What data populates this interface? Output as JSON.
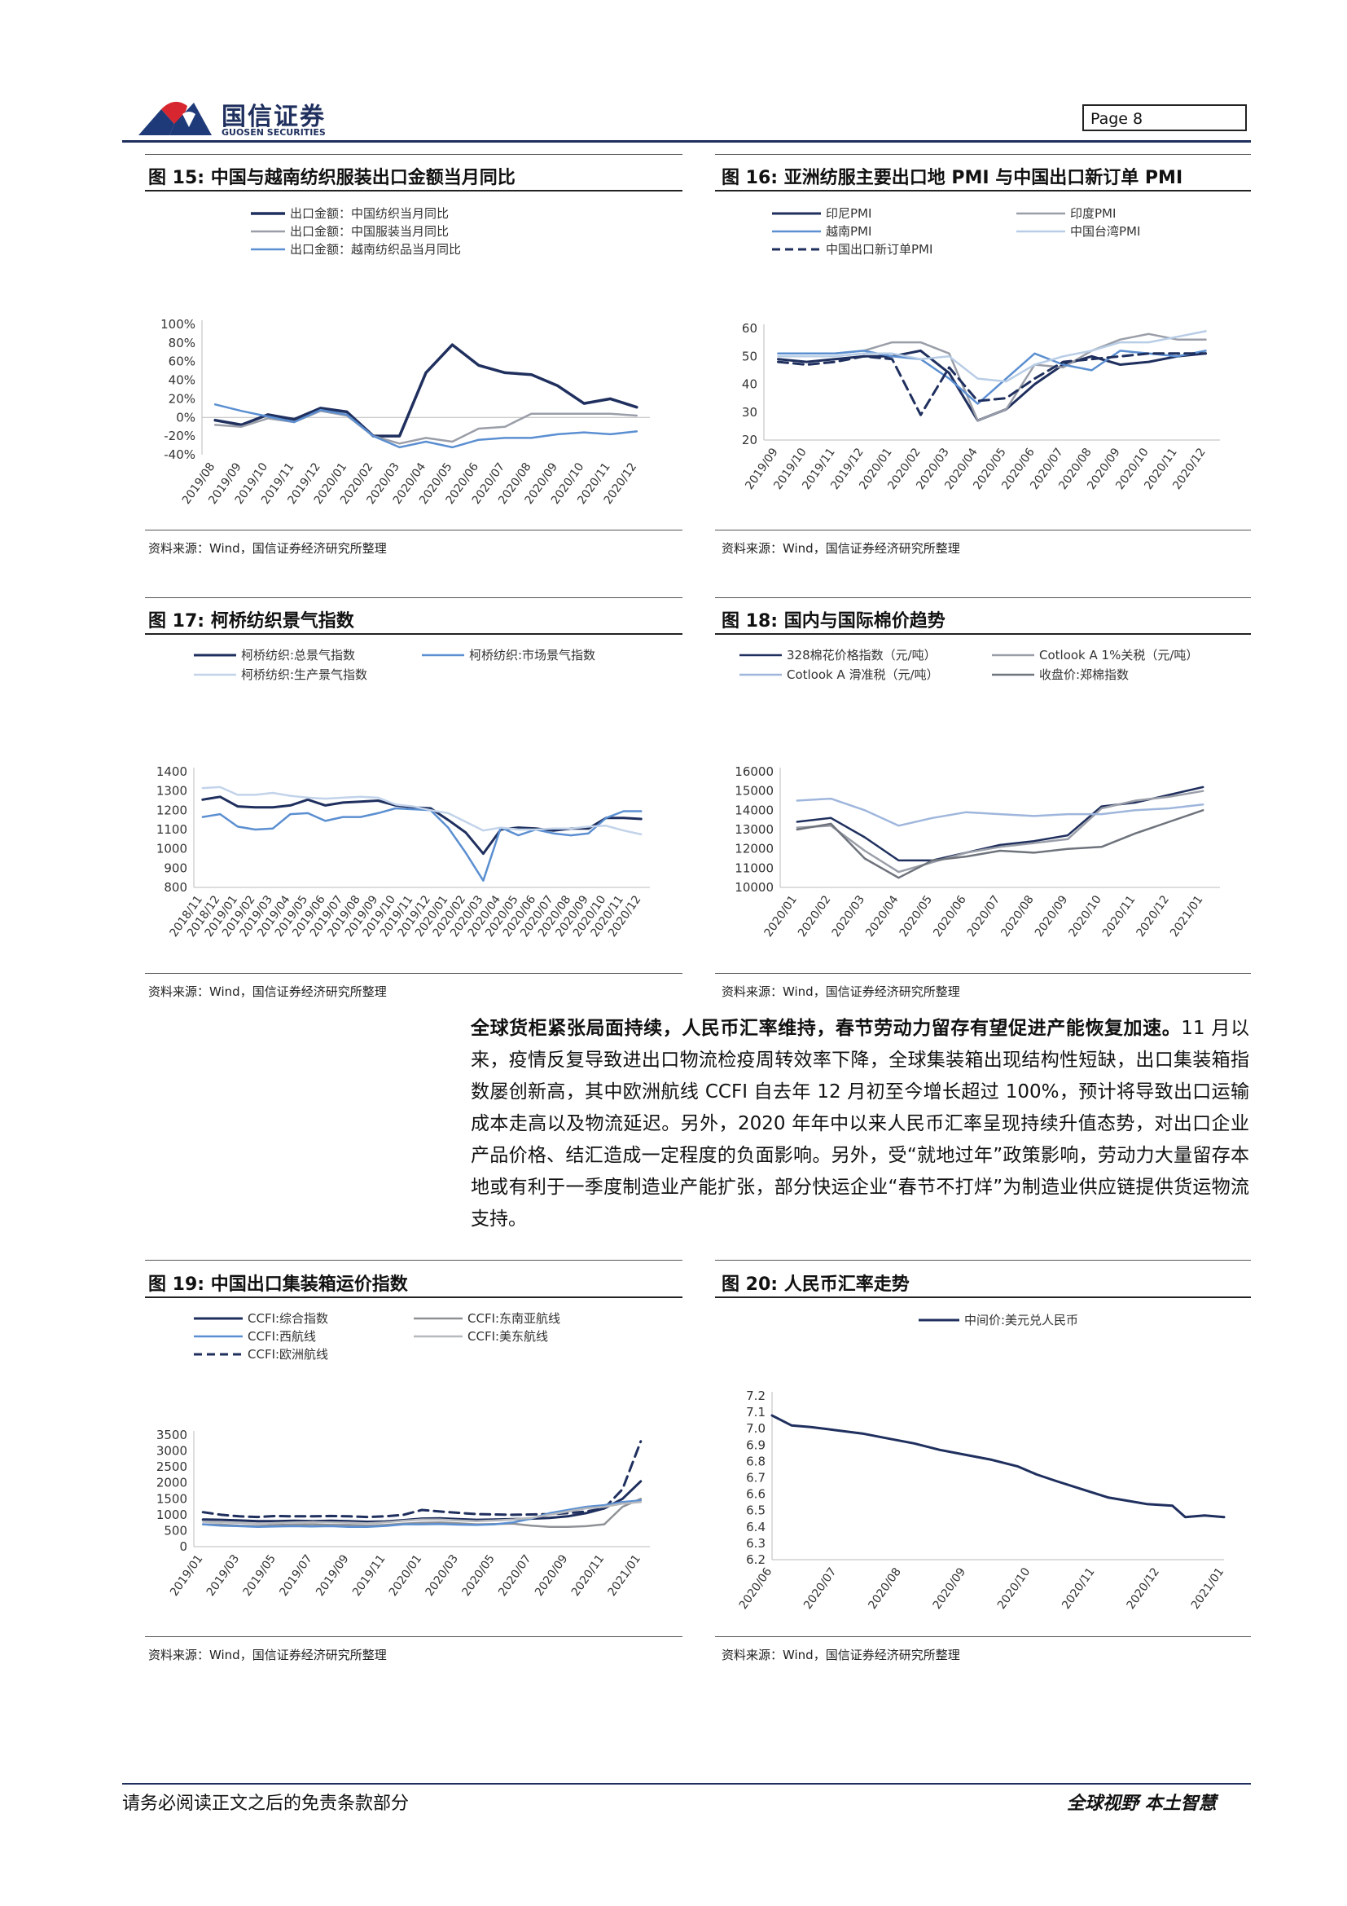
{
  "header": {
    "company_cn": "国信证券",
    "company_en": "GUOSEN SECURITIES",
    "page_label": "Page  8"
  },
  "figures": [
    {
      "label": "图 15:",
      "title": "中国与越南纺织服装出口金额当月同比",
      "source": "资料来源：Wind，国信证券经济研究所整理"
    },
    {
      "label": "图 16:",
      "title": "亚洲纺服主要出口地 PMI 与中国出口新订单 PMI",
      "source": "资料来源：Wind，国信证券经济研究所整理"
    },
    {
      "label": "图 17:",
      "title": "柯桥纺织景气指数",
      "source": "资料来源：Wind，国信证券经济研究所整理"
    },
    {
      "label": "图 18:",
      "title": "国内与国际棉价趋势",
      "source": "资料来源：Wind，国信证券经济研究所整理"
    },
    {
      "label": "图 19:",
      "title": "中国出口集装箱运价指数",
      "source": "资料来源：Wind，国信证券经济研究所整理"
    },
    {
      "label": "图 20:",
      "title": "人民币汇率走势",
      "source": "资料来源：Wind，国信证券经济研究所整理"
    }
  ],
  "body": {
    "bold_lead": "全球货柜紧张局面持续，人民币汇率维持，春节劳动力留存有望促进产能恢复加速。",
    "text": "11 月以来，疫情反复导致进出口物流检疫周转效率下降，全球集装箱出现结构性短缺，出口集装箱指数屡创新高，其中欧洲航线 CCFI 自去年 12 月初至今增长超过 100%，预计将导致出口运输成本走高以及物流延迟。另外，2020 年年中以来人民币汇率呈现持续升值态势，对出口企业产品价格、结汇造成一定程度的负面影响。另外，受“就地过年”政策影响，劳动力大量留存本地或有利于一季度制造业产能扩张，部分快运企业“春节不打烊”为制造业供应链提供货运物流支持。"
  },
  "footer": {
    "disclaimer": "请务必阅读正文之后的免责条款部分",
    "slogan": "全球视野   本土智慧"
  },
  "chart_data": [
    {
      "type": "line",
      "id": "fig15",
      "ylim": [
        -40,
        100
      ],
      "yticks": [
        "100%",
        "80%",
        "60%",
        "40%",
        "20%",
        "0%",
        "-20%",
        "-40%"
      ],
      "yticks_values": [
        100,
        80,
        60,
        40,
        20,
        0,
        -20,
        -40
      ],
      "categories": [
        "2019/08",
        "2019/09",
        "2019/10",
        "2019/11",
        "2019/12",
        "2020/01",
        "2020/02",
        "2020/03",
        "2020/04",
        "2020/05",
        "2020/06",
        "2020/07",
        "2020/08",
        "2020/09",
        "2020/10",
        "2020/11",
        "2020/12"
      ],
      "xtick_labels": [
        "2019/08",
        "2019/09",
        "2019/10",
        "2019/11",
        "2019/12",
        "2020/01",
        "2020/02",
        "2020/03",
        "2020/04",
        "2020/05",
        "2020/06",
        "2020/07",
        "2020/08",
        "2020/09",
        "2020/10",
        "2020/11",
        "2020/12"
      ],
      "series": [
        {
          "name": "出口金额：中国纺织当月同比",
          "color": "#1f2f5e",
          "width": 3.5,
          "values": [
            -3,
            -8,
            3,
            -2,
            10,
            6,
            -20,
            -20,
            48,
            78,
            56,
            48,
            46,
            34,
            15,
            20,
            11
          ]
        },
        {
          "name": "出口金额：中国服装当月同比",
          "color": "#9a9ea8",
          "width": 2.5,
          "values": [
            -8,
            -10,
            -1,
            -5,
            7,
            2,
            -20,
            -28,
            -22,
            -26,
            -12,
            -10,
            4,
            4,
            4,
            4,
            2
          ]
        },
        {
          "name": "出口金额：越南纺织品当月同比",
          "color": "#5b8fd1",
          "width": 2.5,
          "values": [
            14,
            7,
            1,
            -5,
            8,
            3,
            -20,
            -32,
            -26,
            -32,
            -24,
            -22,
            -22,
            -18,
            -16,
            -18,
            -15
          ]
        }
      ]
    },
    {
      "type": "line",
      "id": "fig16",
      "ylim": [
        20,
        60
      ],
      "yticks_values": [
        60,
        50,
        40,
        30,
        20
      ],
      "categories": [
        "2019/09",
        "2019/10",
        "2019/11",
        "2019/12",
        "2020/01",
        "2020/02",
        "2020/03",
        "2020/04",
        "2020/05",
        "2020/06",
        "2020/07",
        "2020/08",
        "2020/09",
        "2020/10",
        "2020/11",
        "2020/12"
      ],
      "xtick_labels": [
        "2019/09",
        "2019/10",
        "2019/11",
        "2019/12",
        "2020/01",
        "2020/02",
        "2020/03",
        "2020/04",
        "2020/05",
        "2020/06",
        "2020/07",
        "2020/08",
        "2020/09",
        "2020/10",
        "2020/11",
        "2020/12"
      ],
      "series": [
        {
          "name": "印尼PMI",
          "color": "#1f2f5e",
          "width": 3,
          "dash": false,
          "values": [
            49,
            48,
            49,
            50,
            50,
            52,
            44,
            27,
            31,
            40,
            47,
            50,
            47,
            48,
            50,
            51
          ]
        },
        {
          "name": "印度PMI",
          "color": "#9a9ea8",
          "width": 2.5,
          "dash": false,
          "values": [
            51,
            51,
            51,
            52,
            55,
            55,
            51,
            27,
            31,
            47,
            46,
            52,
            56,
            58,
            56,
            56
          ]
        },
        {
          "name": "越南PMI",
          "color": "#5b8fd1",
          "width": 2.5,
          "dash": false,
          "values": [
            51,
            51,
            51,
            52,
            50,
            49,
            42,
            33,
            42,
            51,
            47,
            45,
            52,
            51,
            50,
            52
          ]
        },
        {
          "name": "中国台湾PMI",
          "color": "#b8cde6",
          "width": 2.5,
          "dash": false,
          "values": [
            50,
            50,
            50,
            51,
            51,
            49,
            50,
            42,
            41,
            47,
            50,
            52,
            55,
            55,
            57,
            59
          ]
        },
        {
          "name": "中国出口新订单PMI",
          "color": "#1f2f5e",
          "width": 3,
          "dash": true,
          "values": [
            48,
            47,
            48,
            50,
            49,
            29,
            46,
            34,
            35,
            42,
            48,
            49,
            50,
            51,
            51,
            51
          ]
        }
      ]
    },
    {
      "type": "line",
      "id": "fig17",
      "ylim": [
        800,
        1400
      ],
      "yticks_values": [
        1400,
        1300,
        1200,
        1100,
        1000,
        900,
        800
      ],
      "categories": [
        "2018/11",
        "2018/12",
        "2019/01",
        "2019/02",
        "2019/03",
        "2019/04",
        "2019/05",
        "2019/06",
        "2019/07",
        "2019/08",
        "2019/09",
        "2019/10",
        "2019/11",
        "2019/12",
        "2020/01",
        "2020/02",
        "2020/03",
        "2020/04",
        "2020/05",
        "2020/06",
        "2020/07",
        "2020/08",
        "2020/09",
        "2020/10",
        "2020/11",
        "2020/12"
      ],
      "xtick_labels": [
        "2018/11",
        "2018/12",
        "2019/01",
        "2019/02",
        "2019/03",
        "2019/04",
        "2019/05",
        "2019/06",
        "2019/07",
        "2019/08",
        "2019/09",
        "2019/10",
        "2019/11",
        "2019/12",
        "2020/01",
        "2020/02",
        "2020/03",
        "2020/04",
        "2020/05",
        "2020/06",
        "2020/07",
        "2020/08",
        "2020/09",
        "2020/10",
        "2020/11",
        "2020/12"
      ],
      "series": [
        {
          "name": "柯桥纺织:总景气指数",
          "color": "#1f2f5e",
          "width": 3,
          "values": [
            1255,
            1270,
            1220,
            1215,
            1215,
            1225,
            1255,
            1225,
            1240,
            1245,
            1250,
            1225,
            1215,
            1210,
            1150,
            1085,
            975,
            1100,
            1110,
            1105,
            1095,
            1105,
            1105,
            1160,
            1160,
            1155
          ]
        },
        {
          "name": "柯桥纺织:市场景气指数",
          "color": "#5b8fd1",
          "width": 2.5,
          "values": [
            1165,
            1180,
            1115,
            1100,
            1105,
            1180,
            1185,
            1145,
            1165,
            1165,
            1185,
            1210,
            1205,
            1200,
            1110,
            980,
            835,
            1110,
            1070,
            1100,
            1080,
            1070,
            1080,
            1160,
            1195,
            1195
          ]
        },
        {
          "name": "柯桥纺织:生产景气指数",
          "color": "#c2d3ea",
          "width": 2.5,
          "values": [
            1315,
            1320,
            1280,
            1280,
            1290,
            1275,
            1265,
            1260,
            1265,
            1270,
            1265,
            1230,
            1220,
            1200,
            1185,
            1140,
            1095,
            1110,
            1100,
            1100,
            1105,
            1105,
            1115,
            1120,
            1095,
            1075
          ]
        }
      ]
    },
    {
      "type": "line",
      "id": "fig18",
      "ylim": [
        10000,
        16000
      ],
      "yticks_values": [
        16000,
        15000,
        14000,
        13000,
        12000,
        11000,
        10000
      ],
      "categories": [
        "2020/01",
        "2020/02",
        "2020/03",
        "2020/04",
        "2020/05",
        "2020/06",
        "2020/07",
        "2020/08",
        "2020/09",
        "2020/10",
        "2020/11",
        "2020/12",
        "2021/01"
      ],
      "xtick_labels": [
        "2020/01",
        "2020/02",
        "2020/03",
        "2020/04",
        "2020/05",
        "2020/06",
        "2020/07",
        "2020/08",
        "2020/09",
        "2020/10",
        "2020/11",
        "2020/12",
        "2021/01"
      ],
      "series": [
        {
          "name": "328棉花价格指数（元/吨）",
          "color": "#1f2f5e",
          "width": 2.5,
          "values": [
            13400,
            13600,
            12600,
            11400,
            11400,
            11800,
            12200,
            12400,
            12700,
            14200,
            14400,
            14800,
            15200
          ]
        },
        {
          "name": "Cotlook A 1%关税（元/吨）",
          "color": "#9a9ea8",
          "width": 2.5,
          "values": [
            13100,
            13200,
            11900,
            10800,
            11300,
            11800,
            12100,
            12300,
            12500,
            14100,
            14500,
            14700,
            15000
          ]
        },
        {
          "name": "Cotlook A 滑准税（元/吨）",
          "color": "#9fb6dc",
          "width": 2.5,
          "values": [
            14500,
            14600,
            14000,
            13200,
            13600,
            13900,
            13800,
            13700,
            13800,
            13800,
            14000,
            14100,
            14300
          ]
        },
        {
          "name": "收盘价:郑棉指数",
          "color": "#6e737c",
          "width": 2.5,
          "values": [
            13000,
            13300,
            11500,
            10500,
            11400,
            11600,
            11900,
            11800,
            12000,
            12100,
            12800,
            13400,
            14000
          ]
        }
      ]
    },
    {
      "type": "line",
      "id": "fig19",
      "ylim": [
        0,
        3500
      ],
      "yticks_values": [
        3500,
        3000,
        2500,
        2000,
        1500,
        1000,
        500,
        0
      ],
      "categories": [
        "2019/01",
        "2019/02",
        "2019/03",
        "2019/04",
        "2019/05",
        "2019/06",
        "2019/07",
        "2019/08",
        "2019/09",
        "2019/10",
        "2019/11",
        "2019/12",
        "2020/01",
        "2020/02",
        "2020/03",
        "2020/04",
        "2020/05",
        "2020/06",
        "2020/07",
        "2020/08",
        "2020/09",
        "2020/10",
        "2020/11",
        "2020/12",
        "2021/01"
      ],
      "xtick_labels": [
        "2019/01",
        "2019/03",
        "2019/05",
        "2019/07",
        "2019/09",
        "2019/11",
        "2020/01",
        "2020/03",
        "2020/05",
        "2020/07",
        "2020/09",
        "2020/11",
        "2021/01"
      ],
      "series": [
        {
          "name": "CCFI:综合指数",
          "color": "#1f2f5e",
          "width": 3,
          "dash": false,
          "values": [
            850,
            840,
            820,
            800,
            800,
            810,
            800,
            810,
            800,
            780,
            790,
            830,
            880,
            890,
            860,
            840,
            850,
            860,
            880,
            900,
            950,
            1050,
            1200,
            1500,
            2050
          ]
        },
        {
          "name": "CCFI:欧洲航线",
          "color": "#1f2f5e",
          "width": 3,
          "dash": true,
          "values": [
            1080,
            1000,
            950,
            930,
            960,
            950,
            950,
            960,
            950,
            930,
            950,
            1000,
            1150,
            1100,
            1060,
            1020,
            1010,
            1000,
            1010,
            1020,
            1050,
            1100,
            1200,
            1800,
            3300
          ]
        },
        {
          "name": "CCFI:东南亚航线",
          "color": "#8e9196",
          "width": 2.5,
          "dash": false,
          "values": [
            700,
            690,
            660,
            650,
            680,
            690,
            700,
            680,
            680,
            660,
            680,
            720,
            750,
            760,
            730,
            700,
            710,
            720,
            660,
            620,
            620,
            640,
            700,
            1250,
            1500
          ]
        },
        {
          "name": "CCFI:西航线",
          "color": "#5b8fd1",
          "width": 2.5,
          "dash": false,
          "values": [
            700,
            660,
            640,
            620,
            630,
            640,
            630,
            640,
            620,
            620,
            650,
            700,
            700,
            710,
            690,
            680,
            700,
            760,
            880,
            1050,
            1150,
            1250,
            1300,
            1400,
            1450
          ]
        },
        {
          "name": "CCFI:美东航线",
          "color": "#b5b8bd",
          "width": 2.5,
          "dash": false,
          "values": [
            780,
            760,
            740,
            720,
            740,
            760,
            770,
            760,
            750,
            730,
            760,
            810,
            850,
            850,
            820,
            800,
            820,
            850,
            900,
            1000,
            1100,
            1200,
            1250,
            1350,
            1400
          ]
        }
      ]
    },
    {
      "type": "line",
      "id": "fig20",
      "ylim": [
        6.2,
        7.2
      ],
      "yticks_values": [
        7.2,
        7.1,
        7.0,
        6.9,
        6.8,
        6.7,
        6.6,
        6.5,
        6.4,
        6.3,
        6.2
      ],
      "categories": [
        "2020/06",
        "2020/07",
        "2020/08",
        "2020/09",
        "2020/10",
        "2020/11",
        "2020/12",
        "2021/01"
      ],
      "xtick_labels": [
        "2020/06",
        "2020/07",
        "2020/08",
        "2020/09",
        "2020/10",
        "2020/11",
        "2020/12",
        "2021/01"
      ],
      "x_values": [
        0,
        0.3,
        0.6,
        1.0,
        1.4,
        1.8,
        2.2,
        2.6,
        3.0,
        3.4,
        3.8,
        4.1,
        4.4,
        4.8,
        5.2,
        5.5,
        5.8,
        6.2,
        6.4,
        6.7,
        7.0
      ],
      "series": [
        {
          "name": "中间价:美元兑人民币",
          "color": "#1f2f5e",
          "width": 3,
          "values": [
            7.08,
            7.02,
            7.01,
            6.99,
            6.97,
            6.94,
            6.91,
            6.87,
            6.84,
            6.81,
            6.77,
            6.72,
            6.68,
            6.63,
            6.58,
            6.56,
            6.54,
            6.53,
            6.46,
            6.47,
            6.46
          ]
        }
      ]
    }
  ]
}
